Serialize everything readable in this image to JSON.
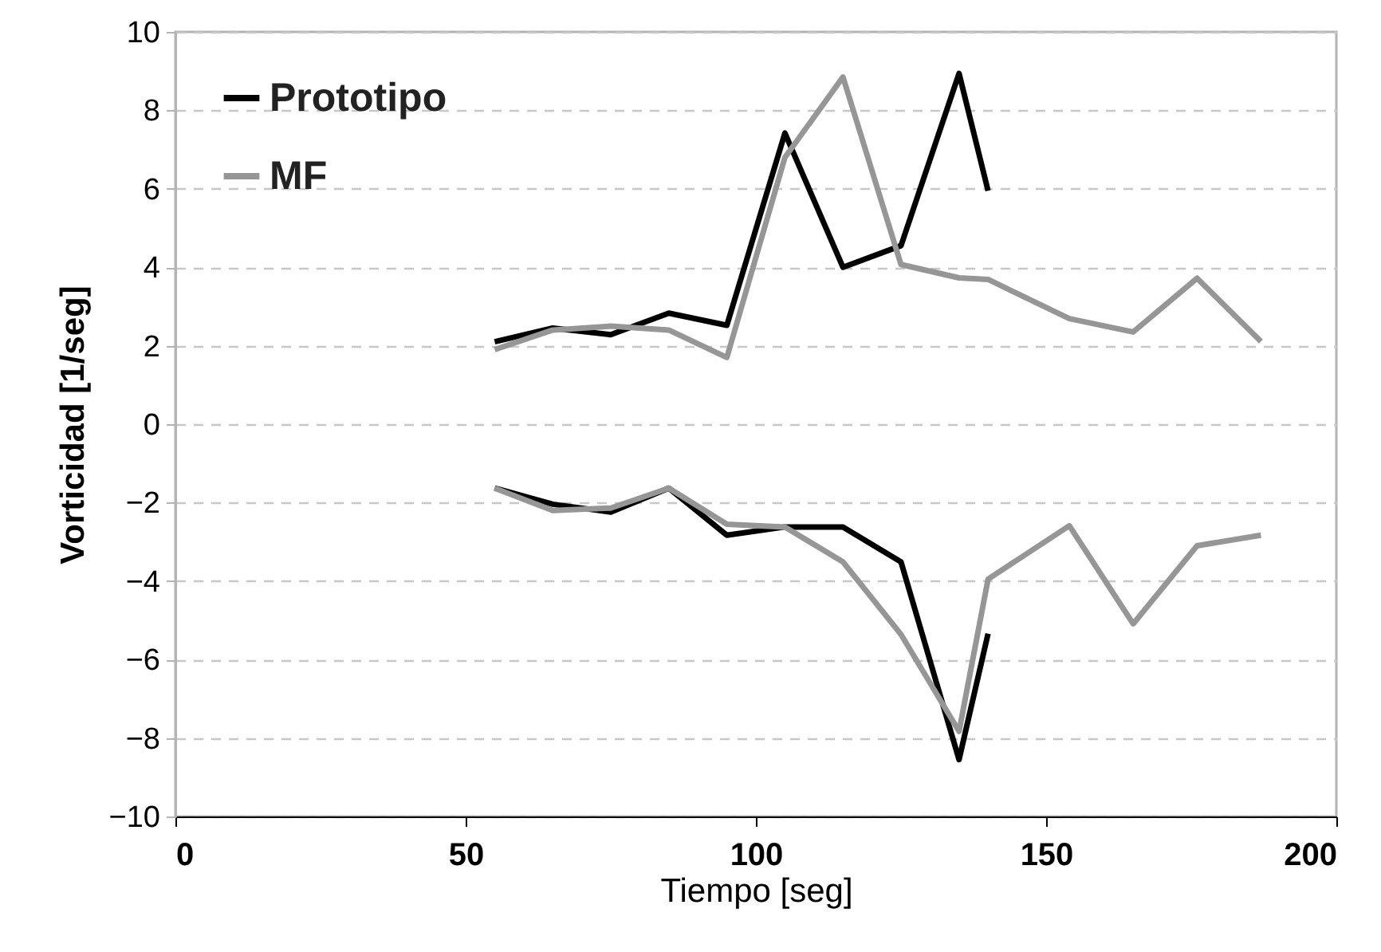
{
  "chart_data": {
    "type": "line",
    "xlabel": "Tiempo [seg]",
    "ylabel": "Vorticidad [1/seg]",
    "xlim": [
      0,
      200
    ],
    "xticks": [
      0,
      50,
      100,
      150,
      200
    ],
    "ylim": [
      -10,
      10
    ],
    "yticks": [
      -10,
      -8,
      -6,
      -4,
      -2,
      0,
      2,
      4,
      6,
      8,
      10
    ],
    "grid": "y",
    "legend": "top left",
    "marker": "none",
    "line_style": "solid",
    "series": [
      {
        "name": "Prototipo",
        "color": "#000000",
        "x": [
          55,
          65,
          75,
          85,
          95,
          105,
          115,
          125,
          135,
          140
        ],
        "values": [
          2.1,
          2.45,
          2.28,
          2.83,
          2.52,
          7.42,
          4.0,
          4.55,
          8.94,
          5.95
        ]
      },
      {
        "name": "MF",
        "color": "#969696",
        "x": [
          55,
          65,
          75,
          85,
          95,
          105,
          115,
          125,
          135,
          140,
          154,
          165,
          176,
          187
        ],
        "values": [
          1.9,
          2.4,
          2.5,
          2.4,
          1.7,
          6.8,
          8.85,
          4.07,
          3.73,
          3.69,
          2.69,
          2.35,
          3.72,
          2.11
        ]
      },
      {
        "color": "#000000",
        "x": [
          55,
          65,
          75,
          85,
          95,
          105,
          115,
          125,
          135,
          140
        ],
        "values": [
          -1.63,
          -2.04,
          -2.24,
          -1.63,
          -2.83,
          -2.62,
          -2.62,
          -3.51,
          -8.55,
          -5.34
        ]
      },
      {
        "color": "#969696",
        "x": [
          55,
          65,
          75,
          85,
          95,
          105,
          115,
          125,
          135,
          140,
          154,
          165,
          176,
          187
        ],
        "values": [
          -1.63,
          -2.2,
          -2.14,
          -1.63,
          -2.55,
          -2.62,
          -3.51,
          -5.36,
          -7.83,
          -3.95,
          -2.59,
          -5.09,
          -3.1,
          -2.83
        ]
      }
    ]
  }
}
